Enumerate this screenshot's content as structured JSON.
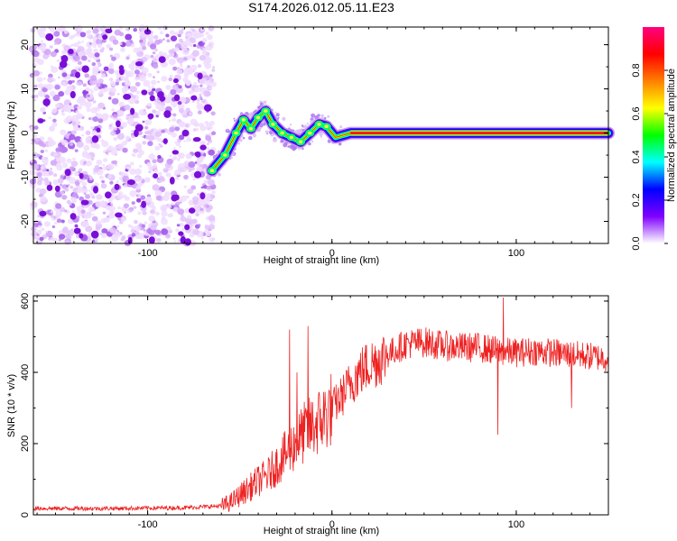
{
  "title": "S174.2026.012.05.11.E23",
  "chart_data": [
    {
      "type": "heatmap",
      "xlabel": "Height of straight line (km)",
      "ylabel": "Frequency (Hz)",
      "xlim": [
        -162,
        150
      ],
      "ylim": [
        -25,
        24
      ],
      "xticks": [
        -100,
        0,
        100
      ],
      "yticks": [
        20,
        10,
        0,
        -10,
        -20
      ],
      "colorbar": {
        "label": "Normalized spectral amplitude",
        "range": [
          0,
          1
        ],
        "ticks": [
          "0.0",
          "0.2",
          "0.4",
          "0.6",
          "0.8"
        ],
        "tick_values": [
          0.0,
          0.2,
          0.4,
          0.6,
          0.8
        ],
        "colors": [
          "#ffffff",
          "#7f00ff",
          "#0000ff",
          "#00ffff",
          "#00ff00",
          "#ffff00",
          "#ff8000",
          "#ff0000",
          "#ff0080"
        ]
      },
      "noise_region_x": [
        -162,
        -65
      ],
      "track": [
        {
          "x": -65,
          "f": -8.5
        },
        {
          "x": -58,
          "f": -5
        },
        {
          "x": -52,
          "f": 0
        },
        {
          "x": -48,
          "f": 3
        },
        {
          "x": -44,
          "f": 1
        },
        {
          "x": -40,
          "f": 3.5
        },
        {
          "x": -36,
          "f": 5
        },
        {
          "x": -32,
          "f": 2
        },
        {
          "x": -27,
          "f": 0
        },
        {
          "x": -22,
          "f": -1
        },
        {
          "x": -17,
          "f": -2
        },
        {
          "x": -12,
          "f": 0
        },
        {
          "x": -7,
          "f": 2
        },
        {
          "x": -3,
          "f": 1.5
        },
        {
          "x": 2,
          "f": -1
        },
        {
          "x": 10,
          "f": 0
        },
        {
          "x": 150,
          "f": 0
        }
      ]
    },
    {
      "type": "line",
      "xlabel": "Height of straight line (km)",
      "ylabel": "SNR (10 * v/v)",
      "xlim": [
        -162,
        150
      ],
      "ylim": [
        0,
        615
      ],
      "xticks": [
        -100,
        0,
        100
      ],
      "yticks": [
        0,
        200,
        400,
        600
      ],
      "series": [
        {
          "name": "SNR",
          "color": "#ee2222",
          "trend": {
            "x": [
              -162,
              -140,
              -120,
              -100,
              -80,
              -60,
              -55,
              -50,
              -45,
              -40,
              -35,
              -30,
              -25,
              -20,
              -15,
              -10,
              -5,
              0,
              5,
              10,
              15,
              20,
              30,
              40,
              50,
              60,
              70,
              80,
              90,
              100,
              110,
              120,
              130,
              140,
              150
            ],
            "y": [
              18,
              18,
              18,
              19,
              20,
              25,
              35,
              55,
              75,
              95,
              110,
              140,
              170,
              200,
              230,
              250,
              270,
              300,
              330,
              370,
              400,
              420,
              450,
              480,
              485,
              475,
              470,
              470,
              460,
              455,
              460,
              455,
              450,
              445,
              440
            ]
          },
          "spikes": [
            {
              "x": -23,
              "y": 520
            },
            {
              "x": -19,
              "y": 400
            },
            {
              "x": -13,
              "y": 530
            },
            {
              "x": 93,
              "y": 610
            },
            {
              "x": 90,
              "y": 225
            },
            {
              "x": 130,
              "y": 300
            }
          ]
        }
      ]
    }
  ]
}
